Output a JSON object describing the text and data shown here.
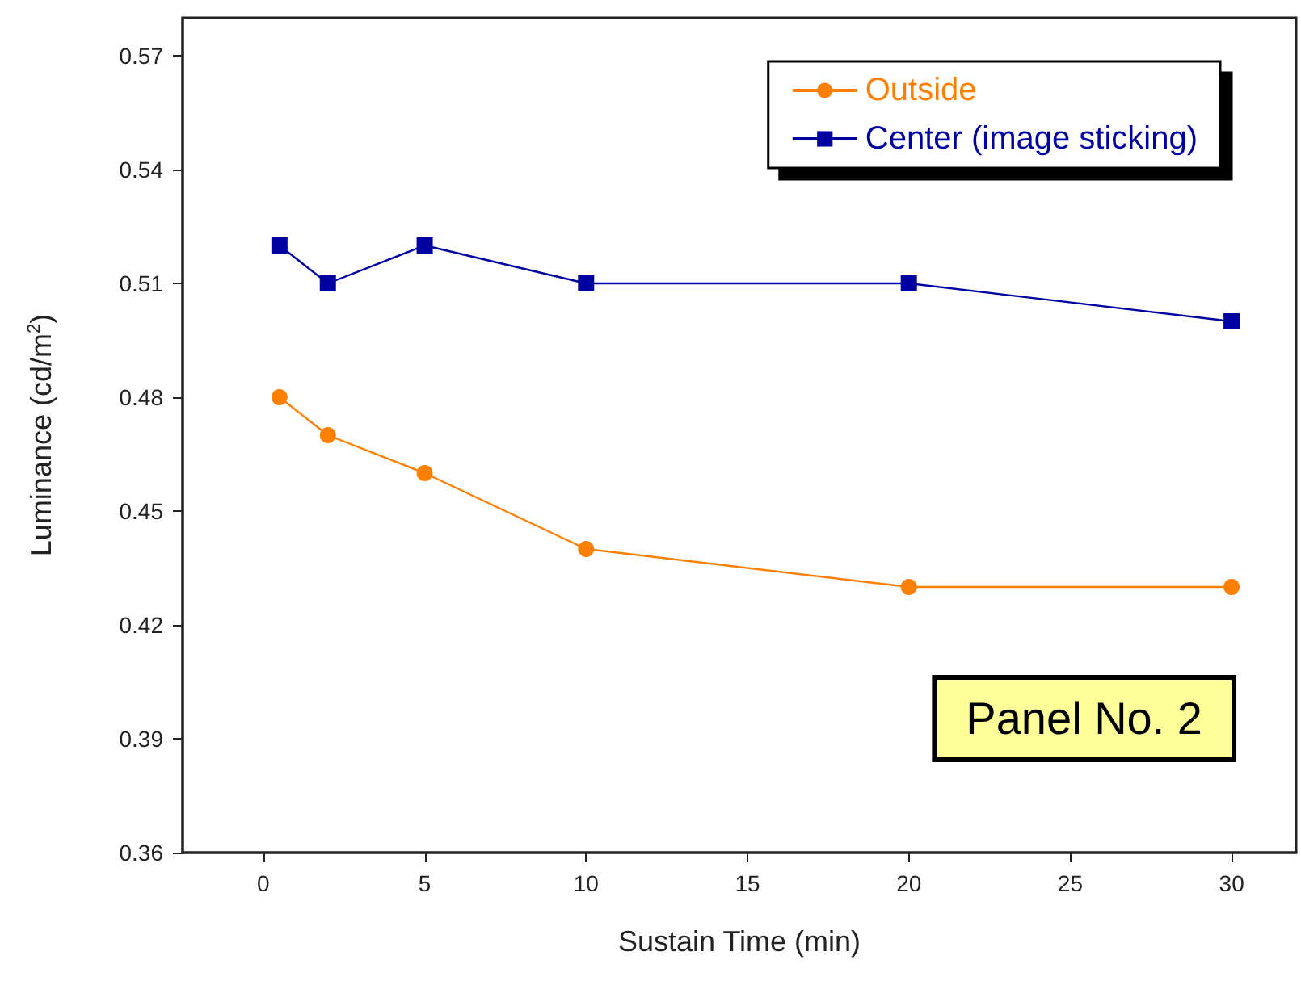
{
  "chart_data": {
    "type": "line",
    "xlabel": "Sustain Time (min)",
    "ylabel": "Luminance (cd/m$^{2}$)",
    "x": [
      0.5,
      2,
      5,
      10,
      20,
      30
    ],
    "series": [
      {
        "name": "Outside",
        "color": "#ff8000",
        "marker": "circle",
        "values": [
          0.48,
          0.47,
          0.46,
          0.44,
          0.43,
          0.43
        ]
      },
      {
        "name": "Center (image sticking)",
        "color": "#0000a0",
        "marker": "square",
        "values": [
          0.52,
          0.51,
          0.52,
          0.51,
          0.51,
          0.5
        ]
      }
    ],
    "xlim": [
      -2.5,
      32
    ],
    "xticks": [
      0,
      5,
      10,
      15,
      20,
      25,
      30
    ],
    "ylim": [
      0.36,
      0.58
    ],
    "yticks": [
      0.36,
      0.39,
      0.42,
      0.45,
      0.48,
      0.51,
      0.54,
      0.57
    ],
    "grid": false,
    "legend": "top right",
    "line_style": "solid",
    "annotations": [
      "Panel No. 2"
    ]
  }
}
